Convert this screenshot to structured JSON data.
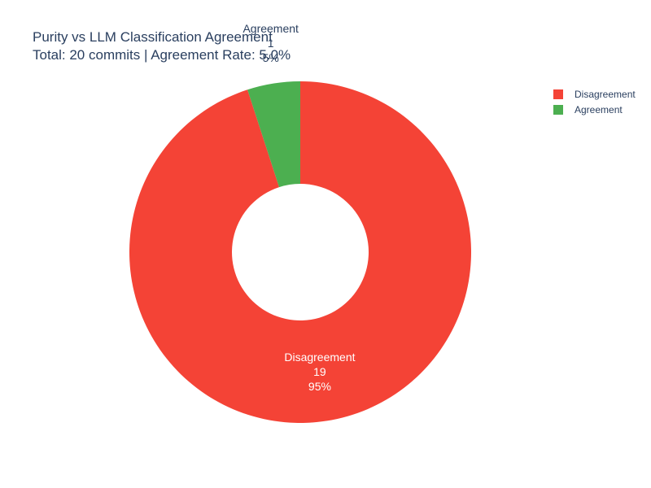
{
  "chart_data": {
    "type": "pie",
    "title": "Purity vs LLM Classification Agreement",
    "subtitle": "Total: 20 commits | Agreement Rate: 5.0%",
    "hole": 0.4,
    "legend_placement": "top-right",
    "slices": [
      {
        "label": "Disagreement",
        "value": 19,
        "percent": "95%",
        "color": "#f44336"
      },
      {
        "label": "Agreement",
        "value": 1,
        "percent": "5%",
        "color": "#4caf50"
      }
    ]
  }
}
